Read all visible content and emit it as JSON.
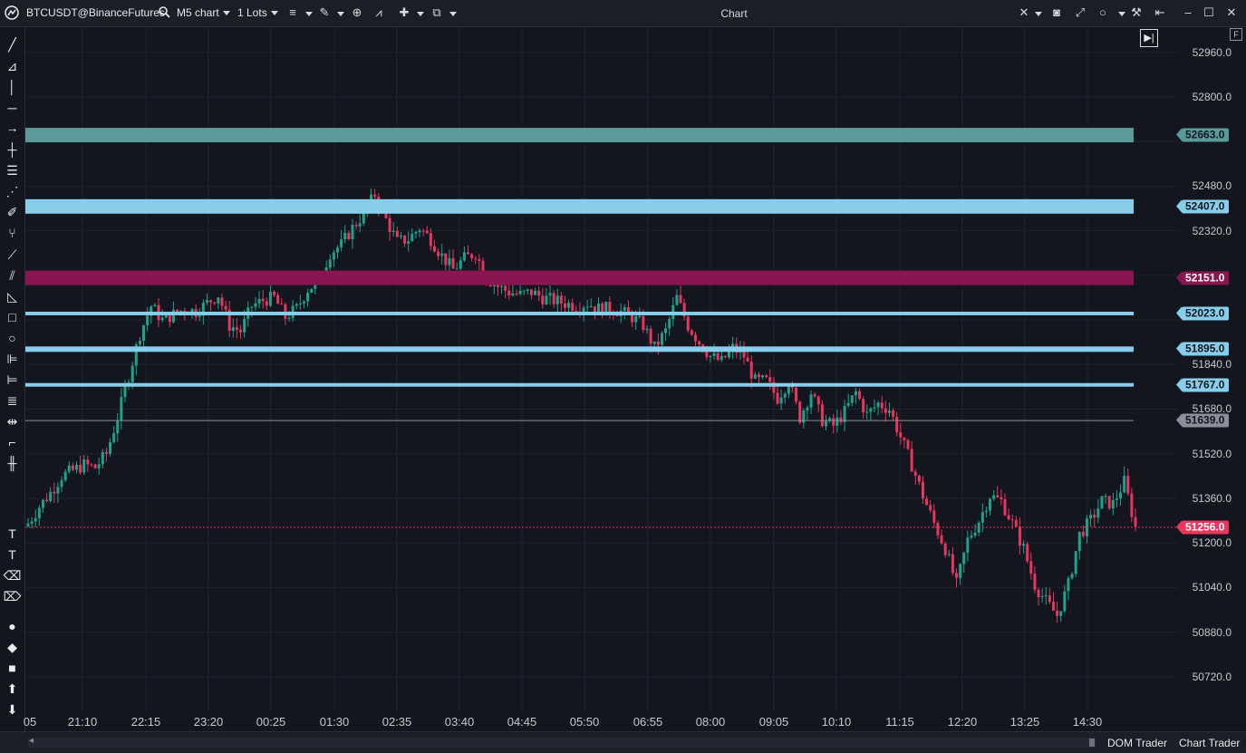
{
  "window": {
    "title": "Chart"
  },
  "header": {
    "symbol": "BTCUSDT@BinanceFutures",
    "timeframe": "M5 chart",
    "lots": "1 Lots"
  },
  "chart_badge": "F",
  "bottom": {
    "dom_trader": "DOM Trader",
    "chart_trader": "Chart Trader"
  },
  "y_ticks": [
    "52960.0",
    "52800.0",
    "52480.0",
    "52320.0",
    "51840.0",
    "51680.0",
    "51520.0",
    "51360.0",
    "51200.0",
    "51040.0",
    "50880.0",
    "50720.0"
  ],
  "x_ticks": [
    "05",
    "21:10",
    "22:15",
    "23:20",
    "00:25",
    "01:30",
    "02:35",
    "03:40",
    "04:45",
    "05:50",
    "06:55",
    "08:00",
    "09:05",
    "10:10",
    "11:15",
    "12:20",
    "13:25",
    "14:30"
  ],
  "levels": [
    {
      "label": "52663.0",
      "color": "#5b9a98"
    },
    {
      "label": "52407.0",
      "color": "#86ceea"
    },
    {
      "label": "52151.0",
      "color": "#8b1550"
    },
    {
      "label": "52023.0",
      "color": "#86ceea"
    },
    {
      "label": "51895.0",
      "color": "#86ceea"
    },
    {
      "label": "51767.0",
      "color": "#86ceea"
    },
    {
      "label": "51639.0",
      "color": "#8a8f99"
    },
    {
      "label": "51256.0",
      "color": "#e8365d"
    }
  ],
  "colors": {
    "up": "#1fa28d",
    "down": "#e8365d",
    "background": "#13161f"
  },
  "chart_data": {
    "type": "candlestick",
    "xlabel": "",
    "ylabel": "",
    "ylim": [
      50600,
      53050
    ],
    "x_ticks": [
      "05",
      "21:10",
      "22:15",
      "23:20",
      "00:25",
      "01:30",
      "02:35",
      "03:40",
      "04:45",
      "05:50",
      "06:55",
      "08:00",
      "09:05",
      "10:10",
      "11:15",
      "12:20",
      "13:25",
      "14:30"
    ],
    "close_path": [
      [
        0,
        51270
      ],
      [
        3,
        51330
      ],
      [
        6,
        51380
      ],
      [
        9,
        51440
      ],
      [
        12,
        51460
      ],
      [
        15,
        51480
      ],
      [
        18,
        51470
      ],
      [
        21,
        51520
      ],
      [
        24,
        51650
      ],
      [
        27,
        51800
      ],
      [
        30,
        51950
      ],
      [
        33,
        52050
      ],
      [
        36,
        52000
      ],
      [
        39,
        52020
      ],
      [
        42,
        52040
      ],
      [
        45,
        52030
      ],
      [
        48,
        52060
      ],
      [
        51,
        52090
      ],
      [
        54,
        51980
      ],
      [
        57,
        51960
      ],
      [
        60,
        52050
      ],
      [
        63,
        52070
      ],
      [
        66,
        52080
      ],
      [
        69,
        52010
      ],
      [
        72,
        52040
      ],
      [
        75,
        52110
      ],
      [
        78,
        52140
      ],
      [
        81,
        52240
      ],
      [
        84,
        52270
      ],
      [
        87,
        52330
      ],
      [
        90,
        52380
      ],
      [
        93,
        52450
      ],
      [
        96,
        52360
      ],
      [
        99,
        52280
      ],
      [
        102,
        52290
      ],
      [
        105,
        52330
      ],
      [
        108,
        52290
      ],
      [
        111,
        52230
      ],
      [
        114,
        52180
      ],
      [
        117,
        52220
      ],
      [
        120,
        52240
      ],
      [
        123,
        52150
      ],
      [
        126,
        52120
      ],
      [
        129,
        52100
      ],
      [
        132,
        52090
      ],
      [
        135,
        52100
      ],
      [
        138,
        52080
      ],
      [
        141,
        52070
      ],
      [
        144,
        52060
      ],
      [
        147,
        52050
      ],
      [
        150,
        52060
      ],
      [
        153,
        52040
      ],
      [
        156,
        52040
      ],
      [
        159,
        52030
      ],
      [
        162,
        52010
      ],
      [
        165,
        51980
      ],
      [
        168,
        51900
      ],
      [
        171,
        51960
      ],
      [
        174,
        52080
      ],
      [
        177,
        51980
      ],
      [
        180,
        51920
      ],
      [
        183,
        51870
      ],
      [
        186,
        51850
      ],
      [
        189,
        51900
      ],
      [
        192,
        51870
      ],
      [
        195,
        51780
      ],
      [
        198,
        51780
      ],
      [
        201,
        51720
      ],
      [
        204,
        51780
      ],
      [
        207,
        51650
      ],
      [
        210,
        51740
      ],
      [
        213,
        51640
      ],
      [
        216,
        51620
      ],
      [
        219,
        51670
      ],
      [
        222,
        51740
      ],
      [
        225,
        51660
      ],
      [
        228,
        51700
      ],
      [
        231,
        51680
      ],
      [
        234,
        51580
      ],
      [
        237,
        51480
      ],
      [
        240,
        51370
      ],
      [
        243,
        51270
      ],
      [
        246,
        51180
      ],
      [
        249,
        51050
      ],
      [
        252,
        51210
      ],
      [
        255,
        51280
      ],
      [
        258,
        51370
      ],
      [
        261,
        51350
      ],
      [
        264,
        51270
      ],
      [
        267,
        51180
      ],
      [
        270,
        51050
      ],
      [
        273,
        50990
      ],
      [
        276,
        50940
      ],
      [
        279,
        51050
      ],
      [
        282,
        51230
      ],
      [
        285,
        51280
      ],
      [
        288,
        51350
      ],
      [
        291,
        51340
      ],
      [
        294,
        51420
      ],
      [
        297,
        51256
      ]
    ],
    "levels": [
      52663.0,
      52407.0,
      52151.0,
      52023.0,
      51895.0,
      51767.0,
      51639.0,
      51256.0
    ]
  }
}
